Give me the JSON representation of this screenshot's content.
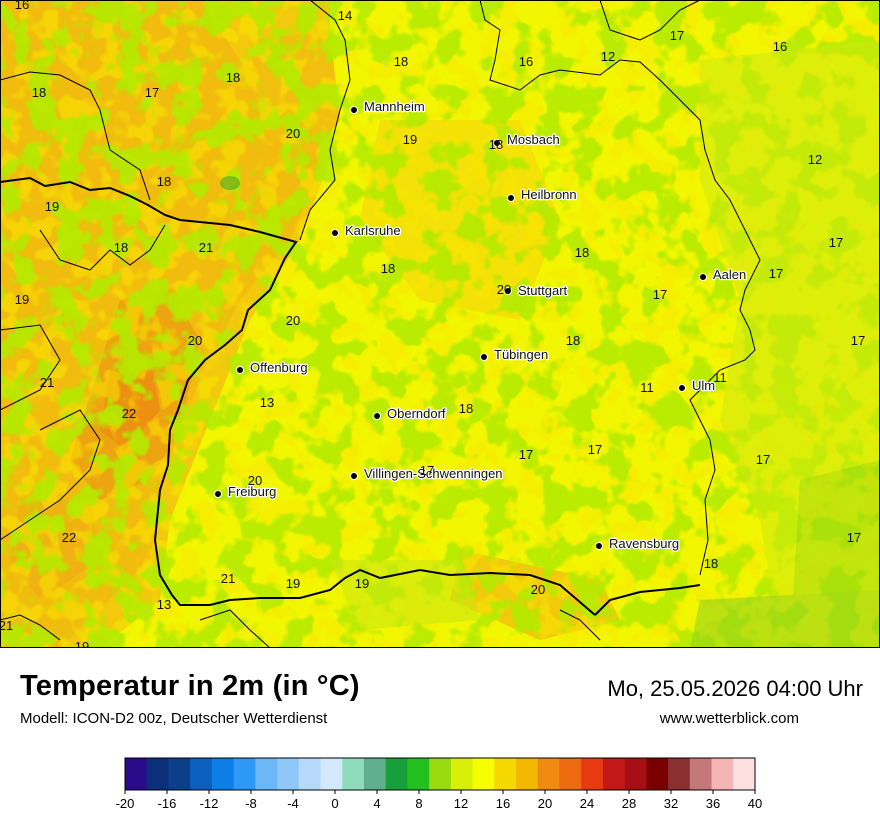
{
  "header": {
    "title": "Temperatur in 2m (in °C)",
    "subtitle": "Modell: ICON-D2 00z, Deutscher Wetterdienst",
    "datetime": "Mo, 25.05.2026 04:00 Uhr",
    "website": "www.wetterblick.com"
  },
  "cities": [
    {
      "name": "Mannheim"
    },
    {
      "name": "Mosbach"
    },
    {
      "name": "Heilbronn"
    },
    {
      "name": "Karlsruhe"
    },
    {
      "name": "Stuttgart"
    },
    {
      "name": "Aalen"
    },
    {
      "name": "Tübingen"
    },
    {
      "name": "Offenburg"
    },
    {
      "name": "Ulm"
    },
    {
      "name": "Oberndorf"
    },
    {
      "name": "Villingen-Schwenningen"
    },
    {
      "name": "Freiburg"
    },
    {
      "name": "Ravensburg"
    }
  ],
  "temperatures": [
    "16",
    "14",
    "17",
    "16",
    "12",
    "18",
    "16",
    "18",
    "17",
    "20",
    "19",
    "18",
    "12",
    "18",
    "19",
    "17",
    "18",
    "21",
    "18",
    "19",
    "20",
    "18",
    "17",
    "17",
    "20",
    "20",
    "18",
    "17",
    "17",
    "21",
    "11",
    "11",
    "22",
    "13",
    "18",
    "17",
    "17",
    "17",
    "20",
    "22",
    "21",
    "19",
    "19",
    "20",
    "18",
    "17",
    "13",
    "21",
    "19"
  ],
  "legend": {
    "colors": [
      "#2a0b8a",
      "#0b2f7a",
      "#0b3f8a",
      "#0a5fbf",
      "#0c7fe6",
      "#2d98f5",
      "#6cb8f7",
      "#8fc8f8",
      "#b6d9fb",
      "#d4e8fc",
      "#8fdcbc",
      "#5fae8e",
      "#17a03a",
      "#22c01e",
      "#9adb10",
      "#d8ef08",
      "#f5ff00",
      "#f5d800",
      "#f3b700",
      "#f08a10",
      "#ee6a10",
      "#e83a10",
      "#c21818",
      "#a80f15",
      "#7a0000",
      "#8a3030",
      "#c47878",
      "#f5b5b5",
      "#ffe0e0"
    ],
    "ticks": [
      "-20",
      "-16",
      "-12",
      "-8",
      "-4",
      "0",
      "4",
      "8",
      "12",
      "16",
      "20",
      "24",
      "28",
      "32",
      "36",
      "40"
    ]
  }
}
